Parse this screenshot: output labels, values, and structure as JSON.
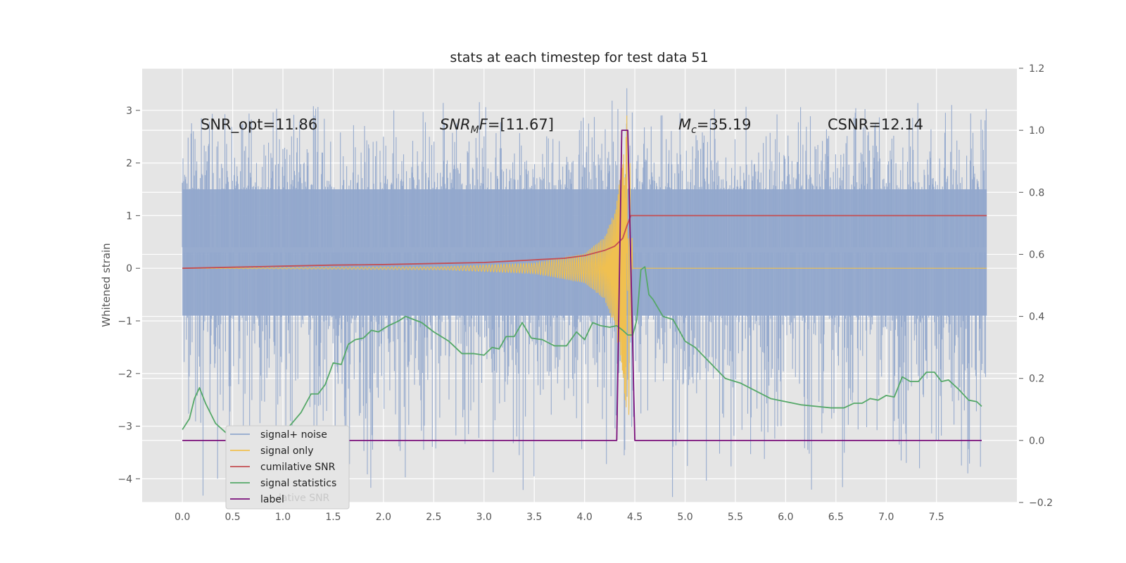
{
  "chart_data": {
    "type": "line",
    "title": "stats at each timestep for test data 51",
    "xlabel": "",
    "ylabel": "Whitened strain",
    "xlim": [
      -0.4,
      8.3
    ],
    "ylim": [
      -4.45,
      3.8
    ],
    "y2lim": [
      -0.2,
      1.2
    ],
    "grid": true,
    "legend_position": "lower-left",
    "x_ticks": [
      "0.0",
      "0.5",
      "1.0",
      "1.5",
      "2.0",
      "2.5",
      "3.0",
      "3.5",
      "4.0",
      "4.5",
      "5.0",
      "5.5",
      "6.0",
      "6.5",
      "7.0",
      "7.5"
    ],
    "y_ticks": [
      "−4",
      "−3",
      "−2",
      "−1",
      "0",
      "1",
      "2",
      "3"
    ],
    "y2_ticks": [
      "−0.2",
      "0.0",
      "0.2",
      "0.4",
      "0.6",
      "0.8",
      "1.0",
      "1.2"
    ],
    "annotations": [
      {
        "name": "snr-opt",
        "text": "SNR_opt=11.86"
      },
      {
        "name": "snr-mf",
        "prefix": "SNR",
        "sub": "M",
        "suffix": "F=[11.67]"
      },
      {
        "name": "chirp-mass",
        "prefix": "M",
        "sub": "c",
        "suffix": "=35.19"
      },
      {
        "name": "csnr",
        "text": "CSNR=12.14"
      }
    ],
    "legend": [
      {
        "label": "signal+ noise",
        "color": "#92a8cc"
      },
      {
        "label": "signal only",
        "color": "#f0c050"
      },
      {
        "label": "cumilative SNR",
        "color": "#c44e52"
      },
      {
        "label": "signal statistics",
        "color": "#55a868"
      },
      {
        "label": "label",
        "color": "#7b107b"
      }
    ],
    "legend_hidden_text": "lative SNR",
    "series": [
      {
        "name": "signal+ noise",
        "axis": "left",
        "style": "noise",
        "x_range": [
          0.0,
          8.0
        ],
        "core_band": [
          -0.9,
          1.5
        ],
        "spike_range": [
          -4.0,
          3.4
        ],
        "peak_points": [
          [
            0.35,
            -4.0
          ],
          [
            3.35,
            -3.55
          ],
          [
            4.42,
            3.42
          ],
          [
            4.4,
            -3.45
          ],
          [
            6.22,
            -3.45
          ],
          [
            7.13,
            -3.35
          ]
        ]
      },
      {
        "name": "signal only",
        "axis": "left",
        "style": "chirp",
        "x_range": [
          0.0,
          8.0
        ],
        "merger_x": 4.42,
        "peak_amplitude": 2.9,
        "envelope": [
          [
            0.0,
            0.0
          ],
          [
            2.6,
            0.03
          ],
          [
            3.5,
            0.1
          ],
          [
            4.0,
            0.28
          ],
          [
            4.2,
            0.6
          ],
          [
            4.3,
            1.1
          ],
          [
            4.38,
            2.0
          ],
          [
            4.42,
            2.9
          ],
          [
            4.44,
            -2.9
          ],
          [
            4.48,
            0.0
          ],
          [
            8.0,
            0.0
          ]
        ]
      },
      {
        "name": "cumilative SNR",
        "axis": "left",
        "points": [
          [
            0.0,
            0.0
          ],
          [
            0.5,
            0.02
          ],
          [
            1.0,
            0.04
          ],
          [
            1.5,
            0.06
          ],
          [
            2.0,
            0.07
          ],
          [
            2.5,
            0.09
          ],
          [
            3.0,
            0.11
          ],
          [
            3.5,
            0.16
          ],
          [
            3.8,
            0.19
          ],
          [
            4.0,
            0.24
          ],
          [
            4.1,
            0.29
          ],
          [
            4.2,
            0.34
          ],
          [
            4.3,
            0.42
          ],
          [
            4.38,
            0.57
          ],
          [
            4.42,
            0.8
          ],
          [
            4.46,
            1.0
          ],
          [
            8.0,
            1.0
          ]
        ]
      },
      {
        "name": "signal statistics",
        "axis": "right",
        "points": [
          [
            0.0,
            0.035
          ],
          [
            0.07,
            0.07
          ],
          [
            0.12,
            0.135
          ],
          [
            0.17,
            0.17
          ],
          [
            0.23,
            0.12
          ],
          [
            0.33,
            0.055
          ],
          [
            0.45,
            0.02
          ],
          [
            0.58,
            0.005
          ],
          [
            0.72,
            -0.005
          ],
          [
            0.85,
            -0.01
          ],
          [
            0.95,
            0.005
          ],
          [
            1.05,
            0.04
          ],
          [
            1.18,
            0.09
          ],
          [
            1.28,
            0.15
          ],
          [
            1.35,
            0.15
          ],
          [
            1.42,
            0.18
          ],
          [
            1.5,
            0.25
          ],
          [
            1.58,
            0.245
          ],
          [
            1.65,
            0.31
          ],
          [
            1.72,
            0.325
          ],
          [
            1.8,
            0.33
          ],
          [
            1.88,
            0.355
          ],
          [
            1.95,
            0.35
          ],
          [
            2.05,
            0.37
          ],
          [
            2.15,
            0.385
          ],
          [
            2.22,
            0.4
          ],
          [
            2.3,
            0.39
          ],
          [
            2.38,
            0.38
          ],
          [
            2.5,
            0.35
          ],
          [
            2.65,
            0.32
          ],
          [
            2.78,
            0.28
          ],
          [
            2.9,
            0.28
          ],
          [
            3.0,
            0.275
          ],
          [
            3.08,
            0.3
          ],
          [
            3.15,
            0.295
          ],
          [
            3.22,
            0.335
          ],
          [
            3.3,
            0.335
          ],
          [
            3.38,
            0.38
          ],
          [
            3.47,
            0.33
          ],
          [
            3.58,
            0.325
          ],
          [
            3.7,
            0.305
          ],
          [
            3.82,
            0.305
          ],
          [
            3.92,
            0.35
          ],
          [
            4.0,
            0.325
          ],
          [
            4.08,
            0.38
          ],
          [
            4.16,
            0.37
          ],
          [
            4.25,
            0.365
          ],
          [
            4.32,
            0.37
          ],
          [
            4.38,
            0.355
          ],
          [
            4.43,
            0.34
          ],
          [
            4.48,
            0.34
          ],
          [
            4.52,
            0.39
          ],
          [
            4.56,
            0.55
          ],
          [
            4.6,
            0.56
          ],
          [
            4.64,
            0.47
          ],
          [
            4.68,
            0.455
          ],
          [
            4.78,
            0.4
          ],
          [
            4.88,
            0.39
          ],
          [
            5.0,
            0.32
          ],
          [
            5.1,
            0.3
          ],
          [
            5.25,
            0.25
          ],
          [
            5.4,
            0.2
          ],
          [
            5.55,
            0.185
          ],
          [
            5.7,
            0.16
          ],
          [
            5.85,
            0.135
          ],
          [
            6.0,
            0.125
          ],
          [
            6.15,
            0.115
          ],
          [
            6.3,
            0.11
          ],
          [
            6.45,
            0.105
          ],
          [
            6.58,
            0.105
          ],
          [
            6.68,
            0.12
          ],
          [
            6.76,
            0.12
          ],
          [
            6.84,
            0.135
          ],
          [
            6.92,
            0.13
          ],
          [
            7.0,
            0.145
          ],
          [
            7.08,
            0.14
          ],
          [
            7.16,
            0.205
          ],
          [
            7.24,
            0.19
          ],
          [
            7.32,
            0.19
          ],
          [
            7.4,
            0.22
          ],
          [
            7.48,
            0.22
          ],
          [
            7.55,
            0.19
          ],
          [
            7.62,
            0.195
          ],
          [
            7.72,
            0.165
          ],
          [
            7.82,
            0.13
          ],
          [
            7.9,
            0.125
          ],
          [
            7.95,
            0.11
          ]
        ]
      },
      {
        "name": "label",
        "axis": "right",
        "points": [
          [
            0.0,
            0.0
          ],
          [
            4.32,
            0.0
          ],
          [
            4.37,
            1.0
          ],
          [
            4.43,
            1.0
          ],
          [
            4.5,
            0.0
          ],
          [
            7.95,
            0.0
          ]
        ]
      }
    ]
  }
}
